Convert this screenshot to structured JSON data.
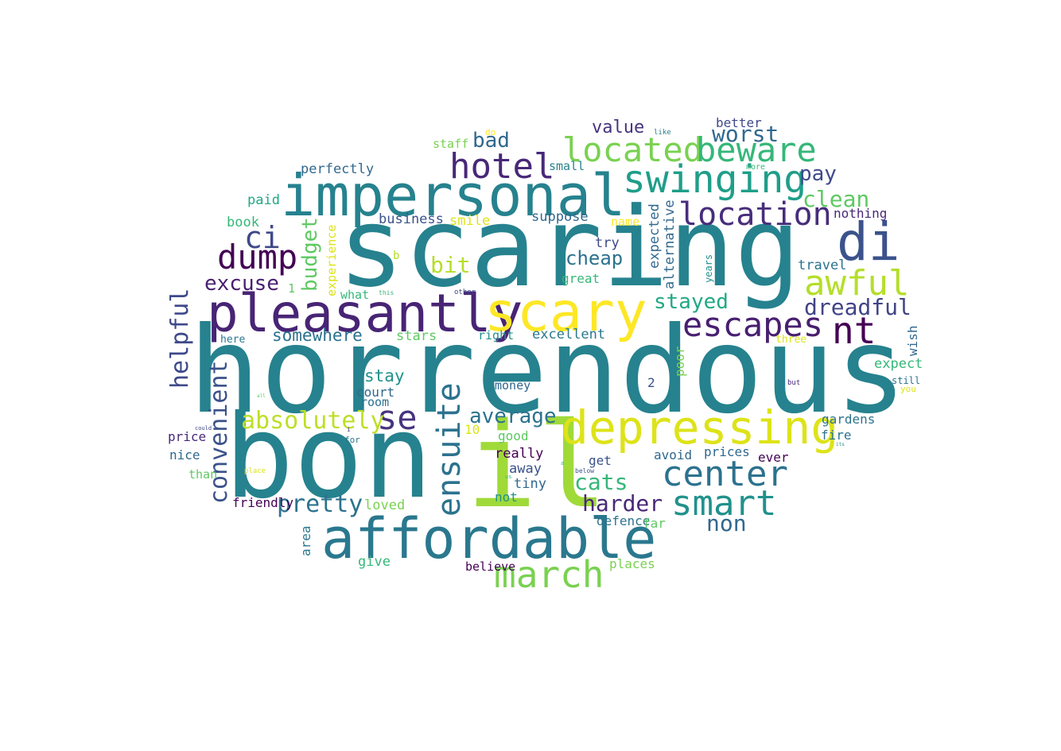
{
  "words": [
    "horrendous",
    "bon",
    "il",
    "scaring",
    "pleasantly",
    "scary",
    "impersonal",
    "affordable",
    "depressing",
    "di",
    "located",
    "beware",
    "swinging",
    "hotel",
    "location",
    "march",
    "smart",
    "center",
    "ensuite",
    "dump",
    "ci",
    "awful",
    "escapes",
    "nt",
    "se",
    "convenient",
    "helpful",
    "absolutely",
    "pretty",
    "harder",
    "cats",
    "non",
    "average",
    "stayed",
    "dreadful",
    "worst",
    "bad",
    "clean",
    "pay",
    "budget",
    "excuse",
    "bit",
    "cheap",
    "value",
    "better",
    "staff",
    "do",
    "like",
    "more",
    "perfectly",
    "small",
    "paid",
    "book",
    "business",
    "smile",
    "suppose",
    "name",
    "nothing",
    "try",
    "expected",
    "alternative",
    "years",
    "travel",
    "1",
    "experience",
    "great",
    "what",
    "this",
    "other",
    "b",
    "here",
    "somewhere",
    "stars",
    "right",
    "excellent",
    "three",
    "poor",
    "wish",
    "stay",
    "2",
    "expect",
    "court",
    "room",
    "money",
    "still",
    "you",
    "but",
    "all",
    "could",
    "price",
    "i",
    "10",
    "good",
    "fire",
    "gardens",
    "its",
    "nice",
    "for",
    "really",
    "us",
    "a",
    "avoid",
    "prices",
    "ever",
    "tiny",
    "get",
    "away",
    "below",
    "not",
    "than",
    "place",
    "friendly",
    "loved",
    "area",
    "defence",
    "far",
    "places",
    "give",
    "believe"
  ]
}
